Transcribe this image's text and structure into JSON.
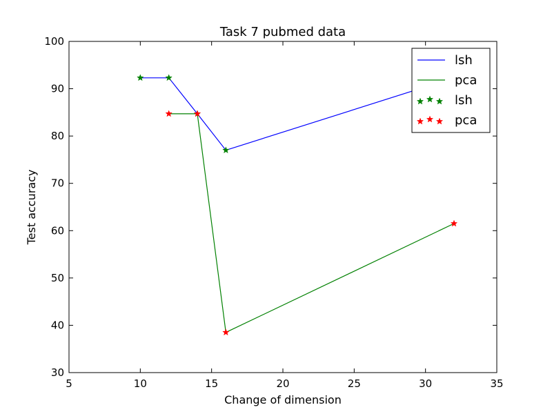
{
  "chart_data": {
    "type": "line",
    "title": "Task 7 pubmed data",
    "xlabel": "Change of dimension",
    "ylabel": "Test accuracy",
    "xlim": [
      5,
      35
    ],
    "ylim": [
      30,
      100
    ],
    "xticks": [
      5,
      10,
      15,
      20,
      25,
      30,
      35
    ],
    "yticks": [
      30,
      40,
      50,
      60,
      70,
      80,
      90,
      100
    ],
    "grid": false,
    "legend_position": "top-right",
    "series": [
      {
        "name": "lsh",
        "color": "#0000ff",
        "marker": "star",
        "marker_color": "#008000",
        "marker_legend_label": "lsh",
        "x": [
          10,
          12,
          14,
          16,
          32
        ],
        "y": [
          92.3,
          92.3,
          84.7,
          77.0,
          92.3
        ]
      },
      {
        "name": "pca",
        "color": "#008000",
        "marker": "star",
        "marker_color": "#ff0000",
        "marker_legend_label": " pca",
        "x": [
          12,
          14,
          16,
          32
        ],
        "y": [
          84.7,
          84.7,
          38.5,
          61.5
        ]
      }
    ]
  }
}
